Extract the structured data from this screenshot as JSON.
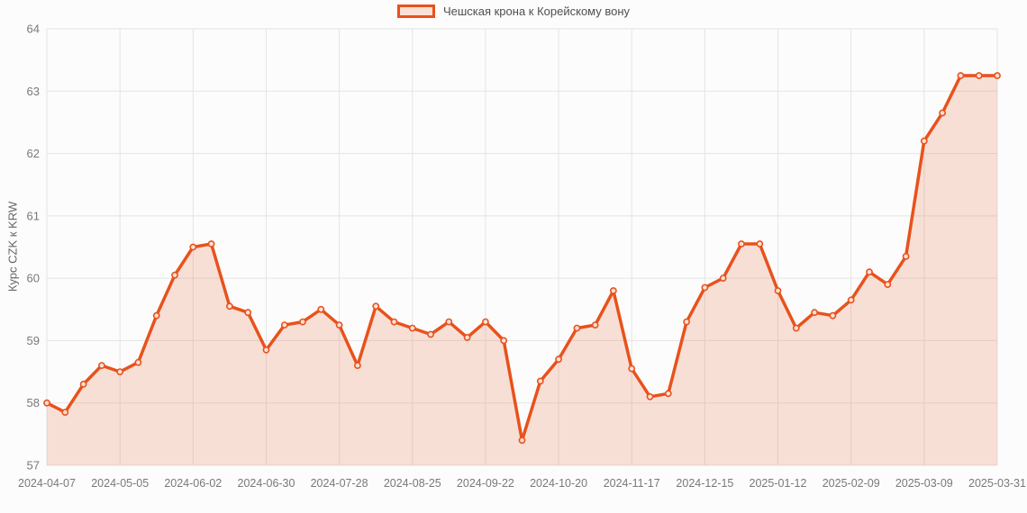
{
  "legend": {
    "label": "Чешская крона к Корейскому вону"
  },
  "y_axis_title": "Курс CZK к KRW",
  "colors": {
    "series": "#e8521c",
    "area_fill_opacity": 0.17,
    "marker_fill": "#fbe0d5",
    "grid": "#e4e4e4",
    "axis_text": "#797979",
    "legend_text": "#4f4f4f",
    "title_text": "#666666",
    "background": "#fcfcfc"
  },
  "chart_data": {
    "type": "area",
    "title": "",
    "xlabel": "",
    "ylabel": "Курс CZK к KRW",
    "ylim": [
      57,
      64
    ],
    "y_ticks": [
      57,
      58,
      59,
      60,
      61,
      62,
      63,
      64
    ],
    "grid": true,
    "legend_position": "top-center",
    "x": [
      "2024-04-07",
      "2024-04-14",
      "2024-04-21",
      "2024-04-28",
      "2024-05-05",
      "2024-05-12",
      "2024-05-19",
      "2024-05-26",
      "2024-06-02",
      "2024-06-09",
      "2024-06-16",
      "2024-06-23",
      "2024-06-30",
      "2024-07-07",
      "2024-07-14",
      "2024-07-21",
      "2024-07-28",
      "2024-08-04",
      "2024-08-11",
      "2024-08-18",
      "2024-08-25",
      "2024-09-01",
      "2024-09-08",
      "2024-09-15",
      "2024-09-22",
      "2024-09-29",
      "2024-10-06",
      "2024-10-13",
      "2024-10-20",
      "2024-10-27",
      "2024-11-03",
      "2024-11-10",
      "2024-11-17",
      "2024-11-24",
      "2024-12-01",
      "2024-12-08",
      "2024-12-15",
      "2024-12-22",
      "2024-12-29",
      "2025-01-05",
      "2025-01-12",
      "2025-01-19",
      "2025-01-26",
      "2025-02-02",
      "2025-02-09",
      "2025-02-16",
      "2025-02-23",
      "2025-03-02",
      "2025-03-09",
      "2025-03-16",
      "2025-03-23",
      "2025-03-30",
      "2025-03-31"
    ],
    "x_tick_every": 4,
    "x_tick_labels": [
      "2024-04-07",
      "2024-05-05",
      "2024-06-02",
      "2024-06-30",
      "2024-07-28",
      "2024-08-25",
      "2024-09-22",
      "2024-10-20",
      "2024-11-17",
      "2024-12-15",
      "2025-01-12",
      "2025-02-09",
      "2025-03-09",
      "2025-03-31"
    ],
    "series": [
      {
        "name": "Чешская крона к Корейскому вону",
        "values": [
          58.0,
          57.85,
          58.3,
          58.6,
          58.5,
          58.65,
          59.4,
          60.05,
          60.5,
          60.55,
          59.55,
          59.45,
          58.85,
          59.25,
          59.3,
          59.5,
          59.25,
          58.6,
          59.55,
          59.3,
          59.2,
          59.1,
          59.3,
          59.05,
          59.3,
          59.0,
          57.4,
          58.35,
          58.7,
          59.2,
          59.25,
          59.8,
          58.55,
          58.1,
          58.15,
          59.3,
          59.85,
          60.0,
          60.55,
          60.55,
          59.8,
          59.2,
          59.45,
          59.4,
          59.65,
          60.1,
          59.9,
          60.35,
          62.2,
          62.65,
          63.25,
          63.25,
          63.25
        ]
      }
    ]
  }
}
